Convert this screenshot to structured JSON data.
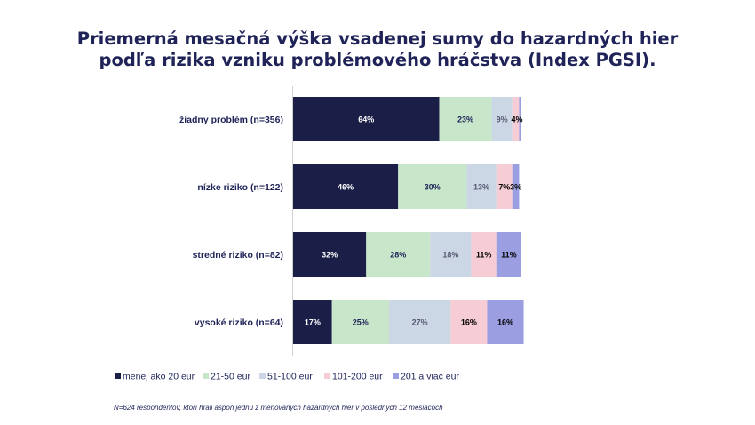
{
  "title_line1": "Priemerná mesačná výška vsadenej sumy do hazardných hier",
  "title_line2": "podľa rizika vzniku problémového hráčstva (Index PGSI).",
  "footnote": "N=624 respondentov, ktorí hrali aspoň jednu z menovaných hazardných hier v posledných 12 mesiacoch",
  "chart_data": {
    "type": "bar",
    "orientation": "horizontal",
    "stacked": true,
    "normalized": true,
    "categories": [
      "žiadny problém (n=356)",
      "nízke riziko (n=122)",
      "stredné riziko (n=82)",
      "vysoké riziko (n=64)"
    ],
    "series": [
      {
        "name": "menej ako 20 eur",
        "color": "#1b1f48",
        "values": [
          64,
          46,
          32,
          17
        ],
        "labels": [
          "64%",
          "46%",
          "32%",
          "17%"
        ],
        "label_color": "#ffffff"
      },
      {
        "name": "21-50 eur",
        "color": "#c8e6c9",
        "values": [
          23,
          30,
          28,
          25
        ],
        "labels": [
          "23%",
          "30%",
          "28%",
          "25%"
        ],
        "label_color": "#1f2358"
      },
      {
        "name": "51-100 eur",
        "color": "#ccd7e5",
        "values": [
          9,
          13,
          18,
          27
        ],
        "labels": [
          "9%",
          "13%",
          "18%",
          "27%"
        ],
        "label_color": "#555a73"
      },
      {
        "name": "101-200 eur",
        "color": "#f6cdd5",
        "values": [
          3,
          7,
          11,
          16
        ],
        "labels": [
          "",
          "7%",
          "11%",
          "16%"
        ],
        "label_color": "#000000"
      },
      {
        "name": "201 a viac eur",
        "color": "#9b9ee0",
        "values": [
          1,
          3,
          11,
          16
        ],
        "labels": [
          "",
          "3%",
          "11%",
          "16%"
        ],
        "label_color": "#000000"
      }
    ],
    "extra_labels": [
      {
        "category": 0,
        "text": "4%"
      }
    ],
    "xlim": [
      0,
      100
    ],
    "legend_position": "bottom",
    "grid": false
  }
}
